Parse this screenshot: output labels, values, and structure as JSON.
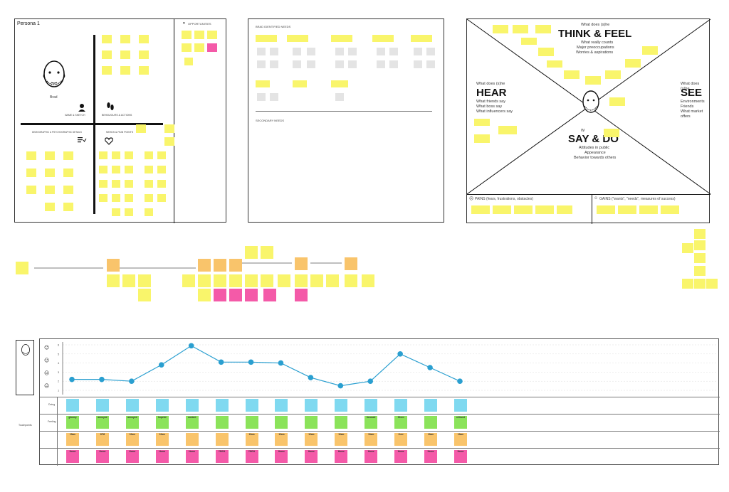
{
  "persona": {
    "title": "Persona 1",
    "name": "Brad",
    "quadrants": {
      "top_left": "NAME & SKETCH",
      "top_right": "BEHAVIOURS & ACTIONS",
      "bottom_left": "DEMOGRAPHIC & PSYCHOGRAPHIC DETAILS",
      "bottom_right": "NEEDS & PAIN POINTS"
    },
    "opportunities_label": "OPPORTUNITIES"
  },
  "needs": {
    "title": "BRAD IDENTIFIED NEEDS",
    "secondary": "SECONDARY NEEDS"
  },
  "empathy": {
    "think_prompt": "What does (s)he",
    "think_title": "THINK & FEEL",
    "think_items": [
      "What really counts",
      "Major preoccupations",
      "Worries & aspirations"
    ],
    "hear_prompt": "What does (s)he",
    "hear_title": "HEAR",
    "hear_items": [
      "What friends say",
      "What boss say",
      "What influencers say"
    ],
    "see_prompt": "What does (s)he",
    "see_title": "SEE",
    "see_items": [
      "Environments",
      "Friends",
      "What market offers"
    ],
    "say_prompt": "W",
    "say_title": "SAY & DO",
    "say_items": [
      "Attitudes in public",
      "Appearance",
      "Behavior towards others"
    ],
    "pains": "PAINS (fears, frustrations, obstacles)",
    "gains": "GAINS (\"wants\", \"needs\", measures of success)"
  },
  "journey": {
    "rows": [
      "Doing",
      "Feeling",
      "",
      "",
      ""
    ],
    "row_side_label": "Touchpoints",
    "chart_data": {
      "type": "line",
      "x": [
        1,
        2,
        3,
        4,
        5,
        6,
        7,
        8,
        9,
        10,
        11,
        12,
        13,
        14
      ],
      "values": [
        2.2,
        2.2,
        2.0,
        3.8,
        5.9,
        4.1,
        4.1,
        4.0,
        2.4,
        1.5,
        2.0,
        5.0,
        3.5,
        2.0
      ],
      "ylim": [
        1,
        6
      ],
      "yticks": [
        "1",
        "2",
        "3",
        "4",
        "5",
        "6"
      ],
      "color": "#2a9fd0"
    },
    "feeling_cards": [
      "gloomy",
      "annoyed",
      "annoyed",
      "hopeful",
      "content",
      "",
      "",
      "",
      "",
      "",
      "focused",
      "Given",
      "",
      "relieved"
    ],
    "time_cards": [
      "10am",
      "1PM",
      "10am",
      "10am",
      "",
      "",
      "10am",
      "10am",
      "10am",
      "10am",
      "10am",
      "Over",
      "10am",
      "10am"
    ],
    "place_cards": [
      "Home",
      "Home",
      "Home",
      "Home",
      "Home",
      "YMCA",
      "YMCA",
      "Home",
      "Home",
      "Home",
      "Home",
      "Home",
      "Home",
      "Home"
    ]
  },
  "colors": {
    "yellow": "#f9f56b",
    "orange": "#f9c46b",
    "pink": "#f45aa8",
    "blue": "#7fd9f0",
    "green": "#8be35a"
  }
}
